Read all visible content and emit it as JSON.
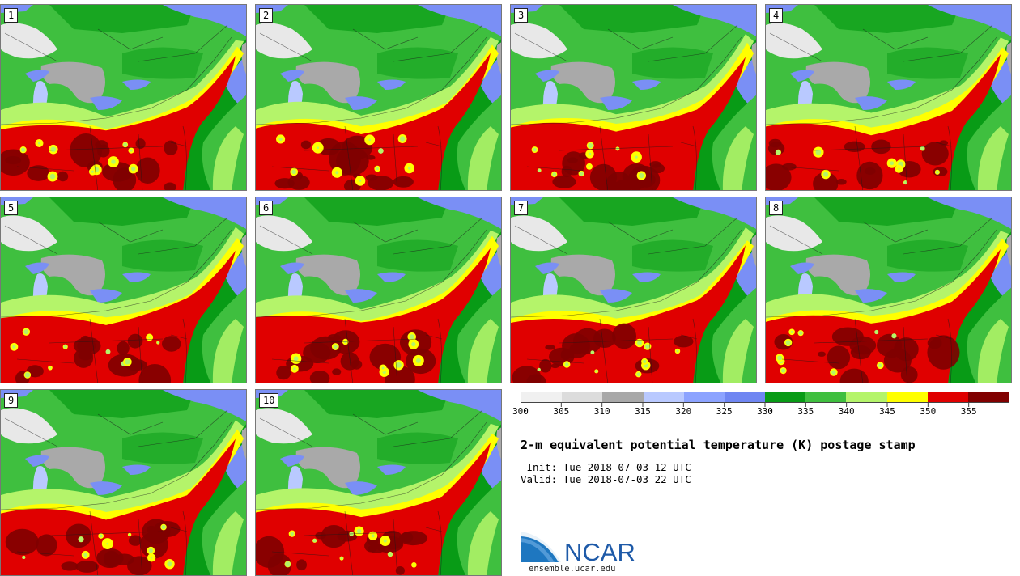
{
  "figure": {
    "title": "2-m equivalent potential temperature (K) postage stamp",
    "init": " Init: Tue 2018-07-03 12 UTC",
    "valid": "Valid: Tue 2018-07-03 22 UTC",
    "logo_text": "NCAR",
    "logo_url": "ensemble.ucar.edu"
  },
  "members": [
    "1",
    "2",
    "3",
    "4",
    "5",
    "6",
    "7",
    "8",
    "9",
    "10"
  ],
  "colorbar": {
    "ticks": [
      "300",
      "305",
      "310",
      "315",
      "320",
      "325",
      "330",
      "335",
      "340",
      "345",
      "350",
      "355"
    ],
    "colors": [
      "#f0f0f0",
      "#dcdcdc",
      "#a8a8a8",
      "#b9c9ff",
      "#8ca3ff",
      "#6f86f2",
      "#089b16",
      "#3fbf3f",
      "#b4f46a",
      "#ffff00",
      "#e00000",
      "#800000"
    ]
  },
  "palette": {
    "snow": "#e8e8e8",
    "grey": "#a9a9a9",
    "lightblue": "#b9c9ff",
    "blue": "#7a8ff5",
    "dgreen": "#089b16",
    "green": "#3fbf3f",
    "lgreen": "#b4f46a",
    "yellow": "#ffff00",
    "red": "#e00000",
    "dred": "#800000",
    "lakes": "#a9a9a9"
  }
}
